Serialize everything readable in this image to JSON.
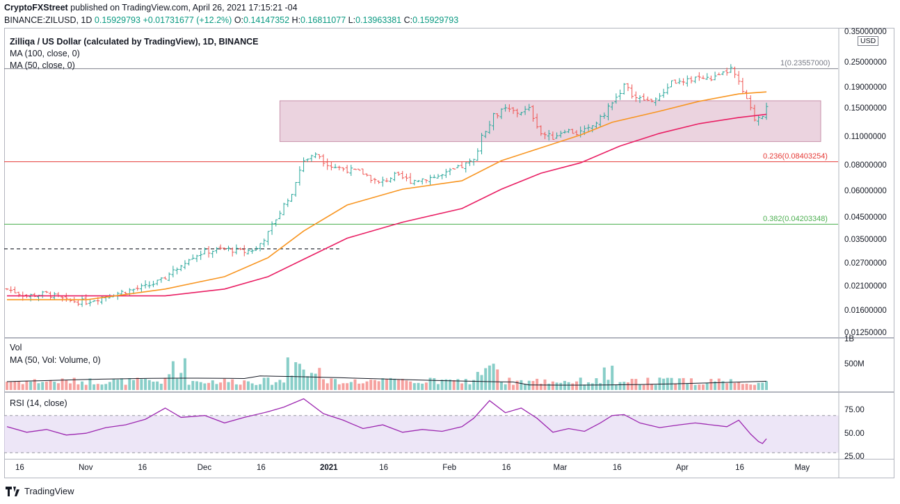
{
  "header": {
    "author": "CryptoFXStreet",
    "published_text": "published on TradingView.com, April 26, 2021 17:15:21 -04",
    "symbol": "BINANCE:ZILUSD, 1D",
    "close_value": "0.15929793",
    "change": "+0.01731677 (+12.2%)",
    "o_label": "O:",
    "o_value": "0.14147352",
    "h_label": "H:",
    "h_value": "0.16811077",
    "l_label": "L:",
    "l_value": "0.13963381",
    "c_label": "C:",
    "c_value": "0.15929793"
  },
  "legend": {
    "title": "Zilliqa / US Dollar (calculated by TradingView), 1D, BINANCE",
    "ma100": "MA (100, close, 0)",
    "ma50": "MA (50, close, 0)",
    "vol": "Vol",
    "vol_ma": "MA (50, Vol: Volume, 0)",
    "rsi": "RSI (14, close)"
  },
  "currency": "USD",
  "fib": {
    "level1": "1(0.23557000)",
    "level236": "0.236(0.08403254)",
    "level382": "0.382(0.04203348)"
  },
  "footer": {
    "brand": "TradingView"
  },
  "colors": {
    "up": "#26a69a",
    "down": "#ef5350",
    "ma50": "#f89520",
    "ma100": "#e91e63",
    "box": "#d8a8bf",
    "rsi": "#9c27b0",
    "rsi_band": "#e1d6f2",
    "fib1": "#787b86",
    "fib236": "#e53935",
    "fib382": "#4caf50"
  },
  "chart_data": {
    "type": "candlestick",
    "scale": "log",
    "price_axis_labels": [
      "0.35000000",
      "0.25000000",
      "0.19000000",
      "0.15000000",
      "0.11000000",
      "0.08000000",
      "0.06000000",
      "0.04500000",
      "0.03500000",
      "0.02700000",
      "0.02100000",
      "0.01600000",
      "0.01250000"
    ],
    "price_ticks": [
      0.35,
      0.25,
      0.19,
      0.15,
      0.11,
      0.08,
      0.06,
      0.045,
      0.035,
      0.027,
      0.021,
      0.016,
      0.0125
    ],
    "volume_axis_labels": [
      "1B",
      "500M"
    ],
    "rsi_axis_labels": [
      "75.00",
      "50.00",
      "25.00"
    ],
    "rsi_ticks": [
      75,
      50,
      25
    ],
    "time_labels": [
      "16",
      "Nov",
      "16",
      "Dec",
      "16",
      "2021",
      "16",
      "Feb",
      "16",
      "Mar",
      "16",
      "Apr",
      "16",
      "May"
    ],
    "time_label_days": [
      0,
      16,
      31,
      46,
      61,
      77,
      92,
      108,
      123,
      136,
      151,
      167,
      182,
      197
    ],
    "date_range": [
      "2020-10-16",
      "2021-04-26"
    ],
    "support_zone": {
      "low": 0.105,
      "high": 0.165,
      "start_day": 69
    },
    "dashed_support": {
      "price": 0.032,
      "end_day": 84
    },
    "close_path": [
      [
        0,
        0.0205
      ],
      [
        5,
        0.019
      ],
      [
        10,
        0.0195
      ],
      [
        15,
        0.018
      ],
      [
        20,
        0.0178
      ],
      [
        25,
        0.019
      ],
      [
        30,
        0.02
      ],
      [
        35,
        0.021
      ],
      [
        39,
        0.0225
      ],
      [
        42,
        0.025
      ],
      [
        46,
        0.029
      ],
      [
        50,
        0.031
      ],
      [
        55,
        0.032
      ],
      [
        60,
        0.031
      ],
      [
        63,
        0.032
      ],
      [
        66,
        0.038
      ],
      [
        69,
        0.048
      ],
      [
        72,
        0.06
      ],
      [
        75,
        0.085
      ],
      [
        78,
        0.09
      ],
      [
        82,
        0.08
      ],
      [
        86,
        0.077
      ],
      [
        90,
        0.074
      ],
      [
        94,
        0.066
      ],
      [
        98,
        0.072
      ],
      [
        102,
        0.068
      ],
      [
        106,
        0.07
      ],
      [
        110,
        0.072
      ],
      [
        114,
        0.078
      ],
      [
        118,
        0.085
      ],
      [
        120,
        0.11
      ],
      [
        123,
        0.14
      ],
      [
        126,
        0.15
      ],
      [
        129,
        0.145
      ],
      [
        132,
        0.15
      ],
      [
        135,
        0.115
      ],
      [
        138,
        0.11
      ],
      [
        141,
        0.12
      ],
      [
        144,
        0.115
      ],
      [
        147,
        0.12
      ],
      [
        150,
        0.135
      ],
      [
        153,
        0.16
      ],
      [
        156,
        0.195
      ],
      [
        159,
        0.17
      ],
      [
        162,
        0.165
      ],
      [
        165,
        0.17
      ],
      [
        168,
        0.205
      ],
      [
        171,
        0.2
      ],
      [
        174,
        0.215
      ],
      [
        177,
        0.21
      ],
      [
        180,
        0.215
      ],
      [
        183,
        0.235
      ],
      [
        185,
        0.2
      ],
      [
        187,
        0.165
      ],
      [
        189,
        0.135
      ],
      [
        191,
        0.142
      ],
      [
        192,
        0.159
      ]
    ],
    "ma50_path": [
      [
        0,
        0.0182
      ],
      [
        20,
        0.0182
      ],
      [
        40,
        0.0205
      ],
      [
        55,
        0.0235
      ],
      [
        66,
        0.029
      ],
      [
        75,
        0.039
      ],
      [
        86,
        0.052
      ],
      [
        100,
        0.062
      ],
      [
        115,
        0.068
      ],
      [
        125,
        0.085
      ],
      [
        135,
        0.098
      ],
      [
        145,
        0.113
      ],
      [
        153,
        0.13
      ],
      [
        165,
        0.147
      ],
      [
        175,
        0.164
      ],
      [
        185,
        0.178
      ],
      [
        192,
        0.182
      ]
    ],
    "ma100_path": [
      [
        0,
        0.019
      ],
      [
        20,
        0.019
      ],
      [
        40,
        0.019
      ],
      [
        55,
        0.0205
      ],
      [
        66,
        0.0235
      ],
      [
        75,
        0.0285
      ],
      [
        86,
        0.036
      ],
      [
        100,
        0.043
      ],
      [
        115,
        0.05
      ],
      [
        125,
        0.062
      ],
      [
        135,
        0.074
      ],
      [
        145,
        0.083
      ],
      [
        155,
        0.1
      ],
      [
        165,
        0.115
      ],
      [
        175,
        0.128
      ],
      [
        185,
        0.137
      ],
      [
        192,
        0.142
      ]
    ],
    "rsi_path": [
      [
        0,
        58
      ],
      [
        5,
        52
      ],
      [
        10,
        55
      ],
      [
        15,
        49
      ],
      [
        20,
        51
      ],
      [
        25,
        57
      ],
      [
        30,
        60
      ],
      [
        35,
        66
      ],
      [
        40,
        78
      ],
      [
        44,
        68
      ],
      [
        50,
        70
      ],
      [
        55,
        62
      ],
      [
        60,
        68
      ],
      [
        66,
        74
      ],
      [
        70,
        79
      ],
      [
        75,
        88
      ],
      [
        80,
        72
      ],
      [
        85,
        65
      ],
      [
        90,
        56
      ],
      [
        95,
        60
      ],
      [
        100,
        52
      ],
      [
        105,
        55
      ],
      [
        110,
        53
      ],
      [
        115,
        58
      ],
      [
        118,
        67
      ],
      [
        122,
        86
      ],
      [
        126,
        73
      ],
      [
        130,
        78
      ],
      [
        134,
        67
      ],
      [
        138,
        52
      ],
      [
        142,
        56
      ],
      [
        146,
        53
      ],
      [
        150,
        62
      ],
      [
        153,
        70
      ],
      [
        156,
        71
      ],
      [
        160,
        62
      ],
      [
        165,
        57
      ],
      [
        170,
        60
      ],
      [
        174,
        62
      ],
      [
        178,
        60
      ],
      [
        182,
        58
      ],
      [
        185,
        65
      ],
      [
        188,
        50
      ],
      [
        190,
        42
      ],
      [
        191,
        40
      ],
      [
        192,
        45
      ]
    ],
    "series": [
      {
        "name": "Price (close)",
        "note": "log scale"
      },
      {
        "name": "MA 50",
        "color": "#f89520"
      },
      {
        "name": "MA 100",
        "color": "#e91e63"
      },
      {
        "name": "Volume"
      },
      {
        "name": "RSI 14",
        "color": "#9c27b0"
      }
    ]
  }
}
